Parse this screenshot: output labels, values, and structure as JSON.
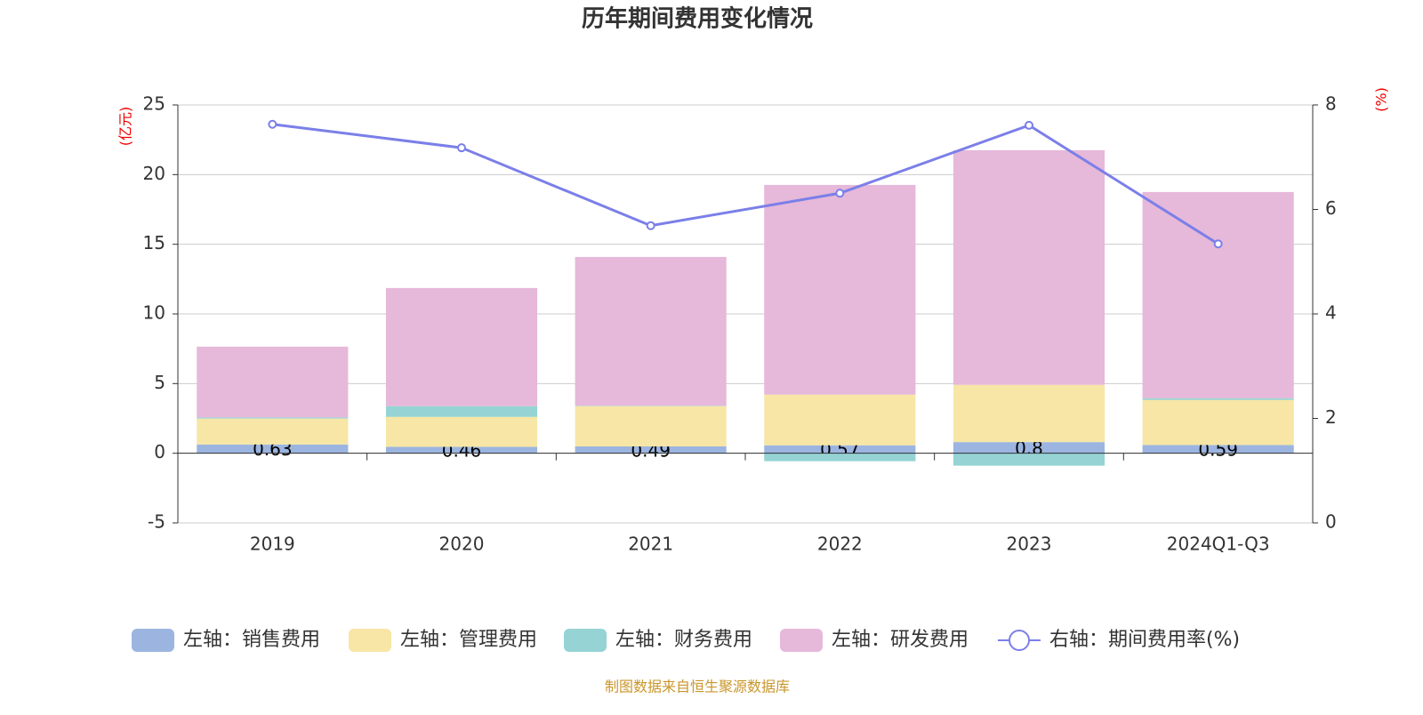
{
  "chart_data": {
    "type": "bar",
    "stacked": true,
    "title": "历年期间费用变化情况",
    "y_label": "(亿元)",
    "y2_label": "(%)",
    "source": "制图数据来自恒生聚源数据库",
    "categories": [
      "2019",
      "2020",
      "2021",
      "2022",
      "2023",
      "2024Q1-Q3"
    ],
    "ylim": [
      -5,
      25
    ],
    "yticks": [
      -5,
      0,
      5,
      10,
      15,
      20,
      25
    ],
    "y2lim": [
      0,
      8
    ],
    "y2ticks": [
      0,
      2,
      4,
      6,
      8
    ],
    "grid": true,
    "series": [
      {
        "name": "左轴：销售费用",
        "color": "#9bb5e0",
        "values": [
          0.63,
          0.46,
          0.49,
          0.57,
          0.8,
          0.59
        ],
        "labels": true
      },
      {
        "name": "左轴：管理费用",
        "color": "#f7e6a5",
        "values": [
          1.86,
          2.15,
          2.89,
          3.64,
          4.11,
          3.24
        ]
      },
      {
        "name": "左轴：财务费用",
        "color": "#95d3d4",
        "values": [
          0.08,
          0.77,
          0.03,
          -0.57,
          -0.89,
          0.12
        ]
      },
      {
        "name": "左轴：研发费用",
        "color": "#e6b8d9",
        "values": [
          5.08,
          8.48,
          10.68,
          15.05,
          16.84,
          14.8
        ]
      },
      {
        "name": "右轴：期间费用率(%)",
        "color": "#7b7fe8",
        "type": "line",
        "axis": "y2",
        "values": [
          7.63,
          7.18,
          5.69,
          6.31,
          7.61,
          5.34
        ]
      }
    ]
  }
}
